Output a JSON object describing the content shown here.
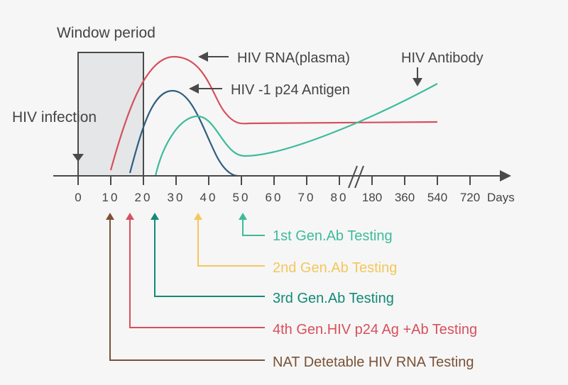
{
  "title_labels": {
    "window_period": "Window period",
    "hiv_infection": "HIV infection",
    "hiv_rna": "HIV RNA(plasma)",
    "p24": "HIV -1 p24 Antigen",
    "antibody": "HIV Antibody"
  },
  "axis": {
    "ticks": [
      "0",
      "10",
      "20",
      "30",
      "40",
      "50",
      "60",
      "70",
      "80",
      "180",
      "360",
      "540",
      "720"
    ],
    "unit": "Days"
  },
  "tests": [
    {
      "label": "1st Gen.Ab Testing",
      "day": "50",
      "color": "#3dbb9b"
    },
    {
      "label": "2nd Gen.Ab Testing",
      "day": "~37",
      "color": "#f4c75c"
    },
    {
      "label": "3rd Gen.Ab Testing",
      "day": "~23",
      "color": "#128a78"
    },
    {
      "label": "4th Gen.HIV p24 Ag +Ab Testing",
      "day": "~16",
      "color": "#d6505d"
    },
    {
      "label": "NAT Detetable HIV RNA Testing",
      "day": "~10",
      "color": "#7a5237"
    }
  ],
  "colors": {
    "rna": "#d6505d",
    "p24": "#2f5f80",
    "antibody": "#3dbb9b",
    "axis": "#4a4a4a",
    "window_fill": "#e5e6e8"
  }
}
